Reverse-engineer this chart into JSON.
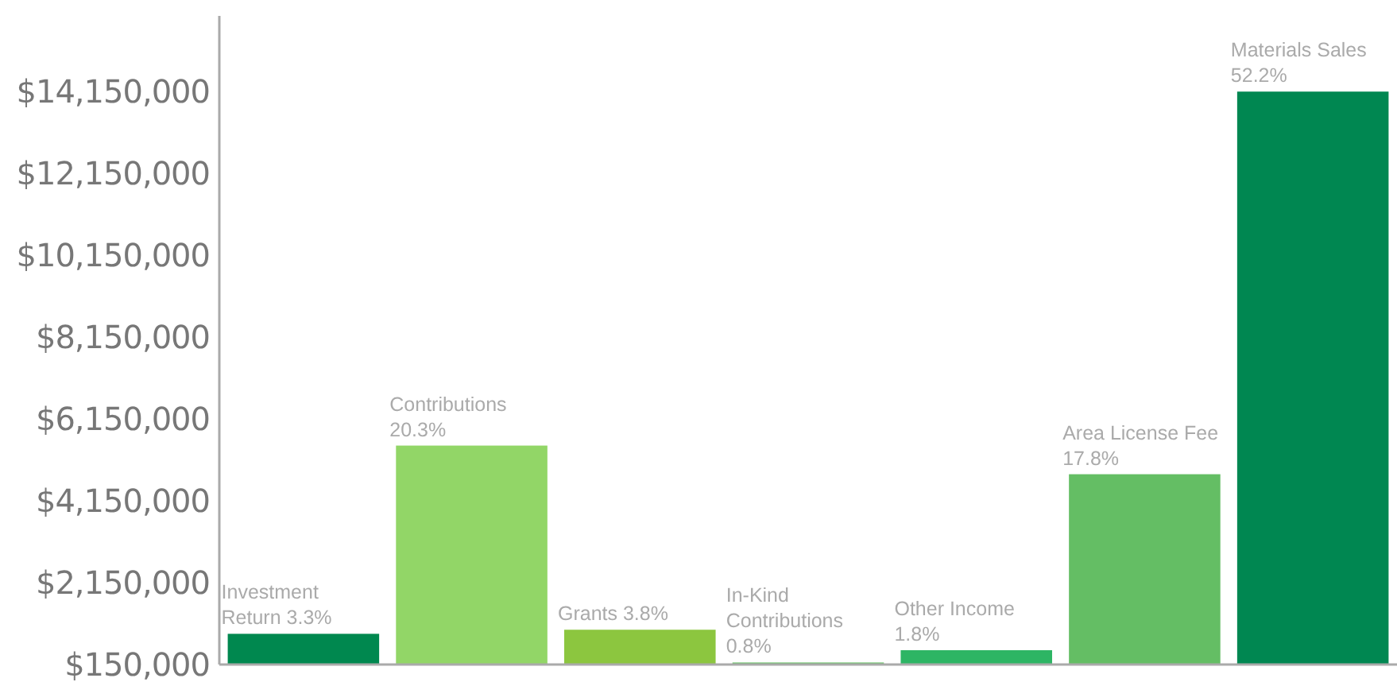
{
  "chart_data": {
    "type": "bar",
    "categories": [
      "Investment Return 3.3%",
      "Contributions 20.3%",
      "Grants 3.8%",
      "In-Kind Contributions 0.8%",
      "Other Income 1.8%",
      "Area License Fee 17.8%",
      "Materials Sales 52.2%"
    ],
    "values": [
      900000,
      5500000,
      1000000,
      200000,
      500000,
      4800000,
      14150000
    ],
    "colors": [
      "#00884f",
      "#92d667",
      "#8cc63f",
      "#6cc36b",
      "#2db564",
      "#64be64",
      "#008751"
    ],
    "ylim": [
      150000,
      16000000
    ],
    "yticks": [
      {
        "value": 150000,
        "label": "$150,000"
      },
      {
        "value": 2150000,
        "label": "$2,150,000"
      },
      {
        "value": 4150000,
        "label": "$4,150,000"
      },
      {
        "value": 6150000,
        "label": "$6,150,000"
      },
      {
        "value": 8150000,
        "label": "$8,150,000"
      },
      {
        "value": 10150000,
        "label": "$10,150,000"
      },
      {
        "value": 12150000,
        "label": "$12,150,000"
      },
      {
        "value": 14150000,
        "label": "$14,150,000"
      }
    ],
    "grid": false
  }
}
